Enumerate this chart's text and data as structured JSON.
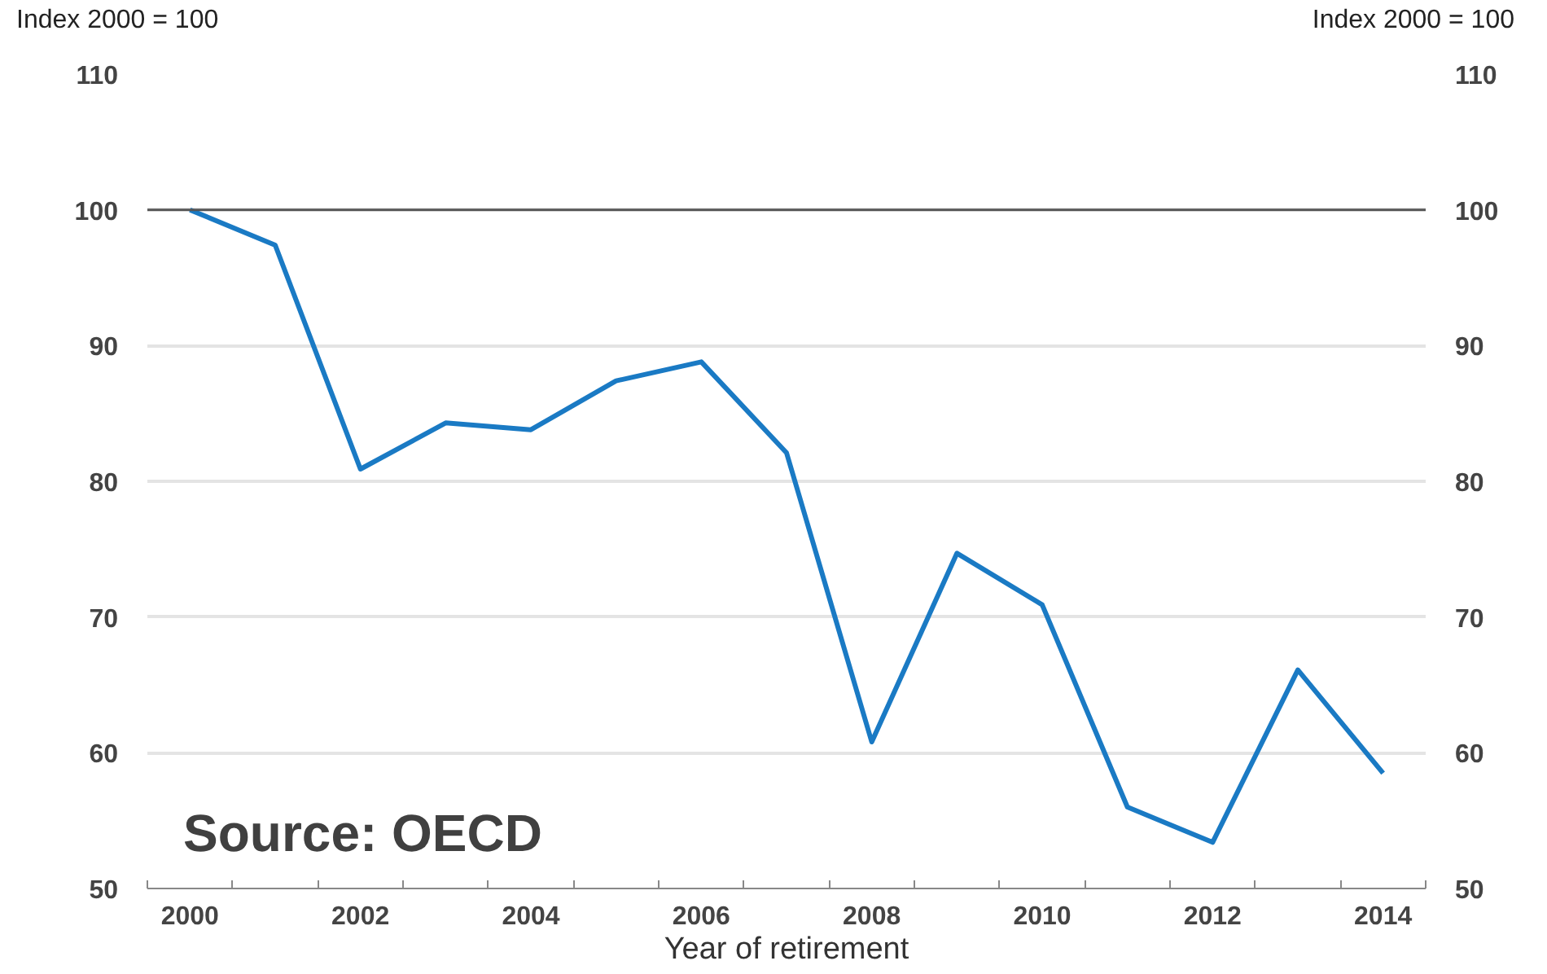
{
  "chart_data": {
    "type": "line",
    "ylabel": "Index 2000 = 100",
    "y2label": "Index 2000 = 100",
    "xlabel": "Year of retirement",
    "x": [
      2000,
      2001,
      2002,
      2003,
      2004,
      2005,
      2006,
      2007,
      2008,
      2009,
      2010,
      2011,
      2012,
      2013,
      2014
    ],
    "series": [
      {
        "color": "#1a7ac4",
        "values": [
          100,
          97.4,
          80.9,
          84.3,
          83.8,
          87.4,
          88.8,
          82.1,
          60.8,
          74.7,
          70.9,
          56.0,
          53.4,
          66.1,
          58.5
        ]
      }
    ],
    "xlim": [
      1999.5,
      2014.5
    ],
    "xticks": [
      {
        "value": 1999.5,
        "label": null
      },
      {
        "value": 2000,
        "label": "2000"
      },
      {
        "value": 2000.5,
        "label": null
      },
      {
        "value": 2001.5,
        "label": null
      },
      {
        "value": 2002,
        "label": "2002"
      },
      {
        "value": 2002.5,
        "label": null
      },
      {
        "value": 2003.5,
        "label": null
      },
      {
        "value": 2004,
        "label": "2004"
      },
      {
        "value": 2004.5,
        "label": null
      },
      {
        "value": 2005.5,
        "label": null
      },
      {
        "value": 2006,
        "label": "2006"
      },
      {
        "value": 2006.5,
        "label": null
      },
      {
        "value": 2007.5,
        "label": null
      },
      {
        "value": 2008,
        "label": "2008"
      },
      {
        "value": 2008.5,
        "label": null
      },
      {
        "value": 2009.5,
        "label": null
      },
      {
        "value": 2010,
        "label": "2010"
      },
      {
        "value": 2010.5,
        "label": null
      },
      {
        "value": 2011.5,
        "label": null
      },
      {
        "value": 2012,
        "label": "2012"
      },
      {
        "value": 2012.5,
        "label": null
      },
      {
        "value": 2013.5,
        "label": null
      },
      {
        "value": 2014,
        "label": "2014"
      },
      {
        "value": 2014.5,
        "label": null
      }
    ],
    "ylim": [
      50,
      110
    ],
    "yticks": [
      50,
      60,
      70,
      80,
      90,
      100,
      110
    ],
    "y2lim": [
      50,
      110
    ],
    "y2ticks": [
      50,
      60,
      70,
      80,
      90,
      100,
      110
    ],
    "ref_lines": [
      {
        "axis": "y",
        "value": 100,
        "color": "#555555"
      }
    ],
    "grid": "y",
    "line_style": "solid",
    "annotations": [
      "Source:  OECD"
    ]
  }
}
